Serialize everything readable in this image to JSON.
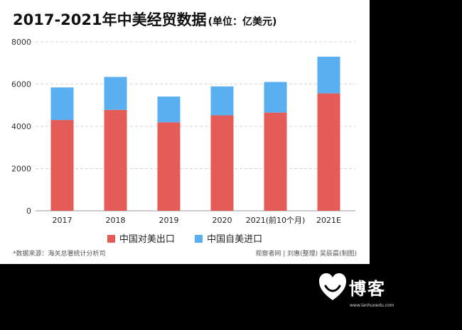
{
  "title": "2017-2021年中美经贸数据",
  "unit": "(单位：亿美元)",
  "source": "*数据来源：海关总署统计分析司",
  "credit": "观察者网 | 刘惠(整理) 吴辰晨(制图)",
  "logo": {
    "text": "博客",
    "url": "www.lanhuoedu.com",
    "icon": "heart-icon"
  },
  "colors": {
    "export": "#e55b57",
    "import": "#5aaff0"
  },
  "chart_data": {
    "type": "bar",
    "stacked": true,
    "categories": [
      "2017",
      "2018",
      "2019",
      "2020",
      "2021(前10个月)",
      "2021E"
    ],
    "series": [
      {
        "name": "中国对美出口",
        "values": [
          4300,
          4780,
          4190,
          4520,
          4650,
          5560
        ]
      },
      {
        "name": "中国自美进口",
        "values": [
          1540,
          1560,
          1220,
          1370,
          1450,
          1740
        ]
      }
    ],
    "yticks": [
      0,
      2000,
      4000,
      6000,
      8000
    ],
    "ylim": [
      0,
      8000
    ],
    "grid": true,
    "legend": "bottom"
  }
}
